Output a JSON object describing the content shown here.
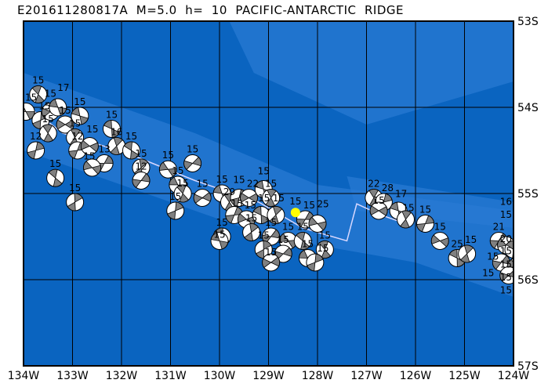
{
  "title": "E201611280817A  M=5.0  h=  10  PACIFIC-ANTARCTIC  RIDGE",
  "map": {
    "lon_range": [
      -134,
      -124
    ],
    "lat_range": [
      -57,
      -53
    ],
    "lon_labels": [
      "134W",
      "133W",
      "132W",
      "131W",
      "130W",
      "129W",
      "128W",
      "127W",
      "126W",
      "125W",
      "124W"
    ],
    "lat_labels": [
      "53S",
      "54S",
      "55S",
      "56S",
      "57S"
    ],
    "colors": {
      "ocean": "#0a64c0",
      "shallow": "#2a7ad4",
      "plate_boundary": "#d8d8ff",
      "compression": "#808080",
      "dilatation": "#ffffff",
      "event": "#ffff00"
    },
    "plate_boundary": [
      [
        -134,
        -53.95
      ],
      [
        -133.2,
        -54.3
      ],
      [
        -131.8,
        -54.55
      ],
      [
        -130.5,
        -54.85
      ],
      [
        -129.2,
        -55.1
      ],
      [
        -128.3,
        -55.4
      ],
      [
        -127.4,
        -55.55
      ],
      [
        -127.2,
        -55.12
      ],
      [
        -126.7,
        -55.25
      ],
      [
        -126.2,
        -55.35
      ]
    ],
    "main_event": {
      "lon": -128.45,
      "lat": -55.22,
      "label": "15"
    },
    "events": [
      {
        "lon": -133.95,
        "lat": -54.05,
        "d": "15"
      },
      {
        "lon": -133.7,
        "lat": -53.85,
        "d": "15"
      },
      {
        "lon": -133.65,
        "lat": -54.15,
        "d": "15"
      },
      {
        "lon": -133.45,
        "lat": -54.05,
        "d": "15"
      },
      {
        "lon": -133.3,
        "lat": -54.0,
        "d": "17"
      },
      {
        "lon": -133.5,
        "lat": -54.3,
        "d": "15"
      },
      {
        "lon": -133.75,
        "lat": -54.5,
        "d": "12"
      },
      {
        "lon": -133.15,
        "lat": -54.2,
        "d": "15"
      },
      {
        "lon": -132.85,
        "lat": -54.1,
        "d": "15"
      },
      {
        "lon": -132.95,
        "lat": -54.35,
        "d": "15"
      },
      {
        "lon": -132.9,
        "lat": -54.5,
        "d": "12"
      },
      {
        "lon": -132.65,
        "lat": -54.45,
        "d": "15"
      },
      {
        "lon": -132.2,
        "lat": -54.25,
        "d": "15"
      },
      {
        "lon": -132.1,
        "lat": -54.45,
        "d": "16"
      },
      {
        "lon": -132.35,
        "lat": -54.65,
        "d": "13"
      },
      {
        "lon": -132.6,
        "lat": -54.7,
        "d": "15"
      },
      {
        "lon": -131.8,
        "lat": -54.5,
        "d": "15"
      },
      {
        "lon": -131.6,
        "lat": -54.7,
        "d": "15"
      },
      {
        "lon": -131.6,
        "lat": -54.85,
        "d": "12"
      },
      {
        "lon": -131.05,
        "lat": -54.72,
        "d": "15"
      },
      {
        "lon": -133.35,
        "lat": -54.82,
        "d": "15"
      },
      {
        "lon": -132.95,
        "lat": -55.1,
        "d": "15"
      },
      {
        "lon": -130.55,
        "lat": -54.65,
        "d": "15"
      },
      {
        "lon": -130.85,
        "lat": -54.9,
        "d": "15"
      },
      {
        "lon": -130.75,
        "lat": -55.0,
        "d": "15"
      },
      {
        "lon": -130.9,
        "lat": -55.2,
        "d": "15"
      },
      {
        "lon": -130.35,
        "lat": -55.05,
        "d": "15"
      },
      {
        "lon": -129.95,
        "lat": -55.0,
        "d": "15"
      },
      {
        "lon": -129.8,
        "lat": -55.1,
        "d": "29"
      },
      {
        "lon": -129.6,
        "lat": -55.05,
        "d": "15"
      },
      {
        "lon": -129.4,
        "lat": -55.05,
        "d": "22"
      },
      {
        "lon": -129.1,
        "lat": -54.95,
        "d": "15"
      },
      {
        "lon": -128.95,
        "lat": -55.05,
        "d": "15"
      },
      {
        "lon": -129.7,
        "lat": -55.25,
        "d": "15"
      },
      {
        "lon": -129.45,
        "lat": -55.3,
        "d": "15"
      },
      {
        "lon": -129.15,
        "lat": -55.25,
        "d": "15"
      },
      {
        "lon": -128.85,
        "lat": -55.25,
        "d": "15"
      },
      {
        "lon": -128.25,
        "lat": -55.3,
        "d": "15"
      },
      {
        "lon": -128.0,
        "lat": -55.35,
        "d": "25"
      },
      {
        "lon": -129.95,
        "lat": -55.5,
        "d": "15"
      },
      {
        "lon": -129.35,
        "lat": -55.45,
        "d": "15"
      },
      {
        "lon": -128.95,
        "lat": -55.5,
        "d": "15"
      },
      {
        "lon": -128.6,
        "lat": -55.55,
        "d": "15"
      },
      {
        "lon": -128.3,
        "lat": -55.55,
        "d": "15"
      },
      {
        "lon": -129.1,
        "lat": -55.65,
        "d": "15"
      },
      {
        "lon": -128.7,
        "lat": -55.7,
        "d": "15"
      },
      {
        "lon": -128.2,
        "lat": -55.75,
        "d": "15"
      },
      {
        "lon": -127.85,
        "lat": -55.65,
        "d": "15"
      },
      {
        "lon": -128.05,
        "lat": -55.8,
        "d": "15"
      },
      {
        "lon": -128.95,
        "lat": -55.8,
        "d": "15"
      },
      {
        "lon": -130.0,
        "lat": -55.55,
        "d": "15"
      },
      {
        "lon": -126.85,
        "lat": -55.05,
        "d": "22"
      },
      {
        "lon": -126.65,
        "lat": -55.1,
        "d": "28"
      },
      {
        "lon": -126.75,
        "lat": -55.2,
        "d": "15"
      },
      {
        "lon": -126.35,
        "lat": -55.2,
        "d": "17"
      },
      {
        "lon": -126.2,
        "lat": -55.3,
        "d": "15"
      },
      {
        "lon": -125.8,
        "lat": -55.35,
        "d": "15"
      },
      {
        "lon": -125.5,
        "lat": -55.55,
        "d": "15"
      },
      {
        "lon": -125.15,
        "lat": -55.75,
        "d": "25"
      },
      {
        "lon": -124.95,
        "lat": -55.7,
        "d": "15"
      },
      {
        "lon": -124.3,
        "lat": -55.55,
        "d": "21"
      },
      {
        "lon": -124.15,
        "lat": -55.6,
        "d": "20"
      },
      {
        "lon": -124.0,
        "lat": -55.65,
        "d": "15"
      },
      {
        "lon": -123.8,
        "lat": -55.5,
        "d": "15"
      },
      {
        "lon": -124.25,
        "lat": -55.8,
        "d": "15"
      },
      {
        "lon": -123.95,
        "lat": -55.85,
        "d": "15"
      },
      {
        "lon": -123.7,
        "lat": -55.75,
        "d": "15"
      },
      {
        "lon": -123.6,
        "lat": -55.95,
        "d": "15"
      },
      {
        "lon": -124.1,
        "lat": -55.95,
        "d": "15"
      },
      {
        "lon": -123.45,
        "lat": -55.85,
        "d": "16"
      }
    ]
  }
}
